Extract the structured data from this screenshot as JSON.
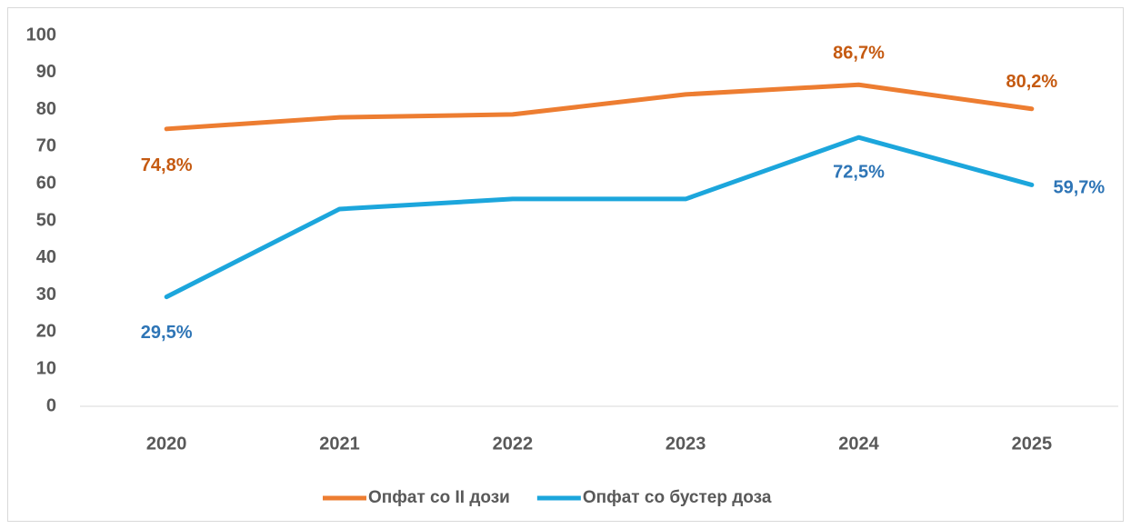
{
  "chart_data": {
    "type": "line",
    "categories": [
      "2020",
      "2021",
      "2022",
      "2023",
      "2024",
      "2025"
    ],
    "series": [
      {
        "name": "Опфат со II дози",
        "color": "#ed7d31",
        "label_color": "#c55a11",
        "values": [
          74.8,
          77.9,
          78.7,
          84.1,
          86.7,
          80.2
        ],
        "value_labels": [
          "74,8%",
          null,
          null,
          null,
          "86,7%",
          "80,2%"
        ]
      },
      {
        "name": "Опфат со бустер доза",
        "color": "#1ca6dc",
        "label_color": "#2e75b6",
        "values": [
          29.5,
          53.2,
          55.9,
          55.9,
          72.5,
          59.7
        ],
        "value_labels": [
          "29,5%",
          null,
          null,
          null,
          "72,5%",
          "59,7%"
        ]
      }
    ],
    "ylim": [
      0,
      100
    ],
    "yticks": [
      0,
      10,
      20,
      30,
      40,
      50,
      60,
      70,
      80,
      90,
      100
    ],
    "grid": false,
    "legend": "bottom"
  }
}
